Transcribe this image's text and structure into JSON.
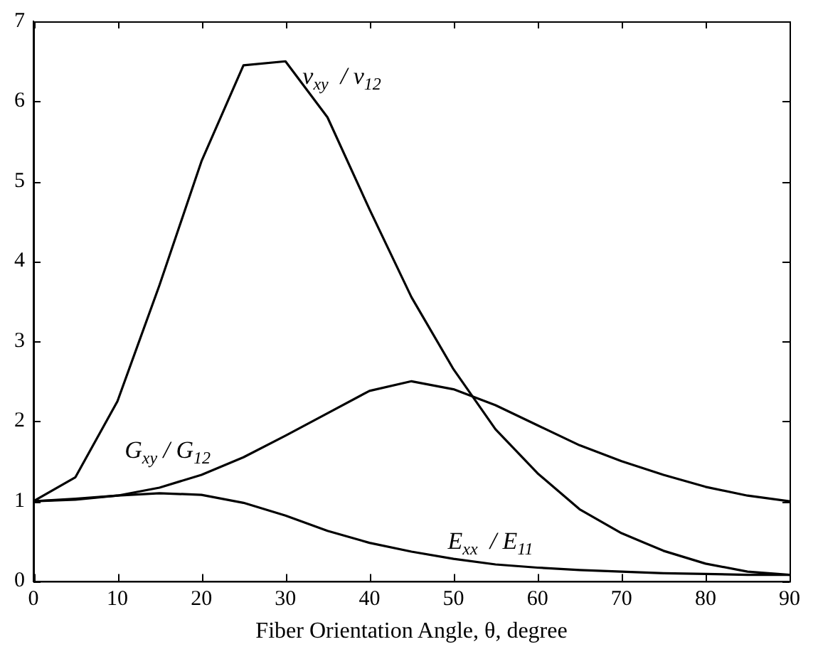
{
  "chart_data": {
    "type": "line",
    "xlabel": "Fiber Orientation Angle, θ, degree",
    "x": [
      0,
      5,
      10,
      15,
      20,
      25,
      30,
      35,
      40,
      45,
      50,
      55,
      60,
      65,
      70,
      75,
      80,
      85,
      90
    ],
    "series": [
      {
        "name": "ν$_{xy}$  / ν$_{12}$",
        "color": "#000000",
        "values": [
          1.0,
          1.3,
          2.25,
          3.7,
          5.25,
          6.45,
          6.5,
          5.8,
          4.65,
          3.55,
          2.65,
          1.9,
          1.35,
          0.9,
          0.6,
          0.38,
          0.22,
          0.12,
          0.08
        ]
      },
      {
        "name": "G$_{xy}$ / G$_{12}$",
        "color": "#000000",
        "values": [
          1.0,
          1.02,
          1.07,
          1.17,
          1.33,
          1.55,
          1.82,
          2.1,
          2.38,
          2.5,
          2.4,
          2.2,
          1.95,
          1.7,
          1.5,
          1.33,
          1.18,
          1.07,
          1.0
        ]
      },
      {
        "name": "E$_{xx}$  / E$_{11}$",
        "color": "#000000",
        "values": [
          1.0,
          1.03,
          1.07,
          1.1,
          1.08,
          0.98,
          0.82,
          0.63,
          0.48,
          0.37,
          0.28,
          0.21,
          0.17,
          0.14,
          0.12,
          0.1,
          0.09,
          0.08,
          0.08
        ]
      }
    ],
    "xlim": [
      0,
      90
    ],
    "xticks": [
      0,
      10,
      20,
      30,
      40,
      50,
      60,
      70,
      80,
      90
    ],
    "ylim": [
      0,
      7
    ],
    "yticks": [
      0,
      1,
      2,
      3,
      4,
      5,
      6,
      7
    ],
    "grid": false,
    "legend": false,
    "marker": "none",
    "line_style": "solid"
  }
}
